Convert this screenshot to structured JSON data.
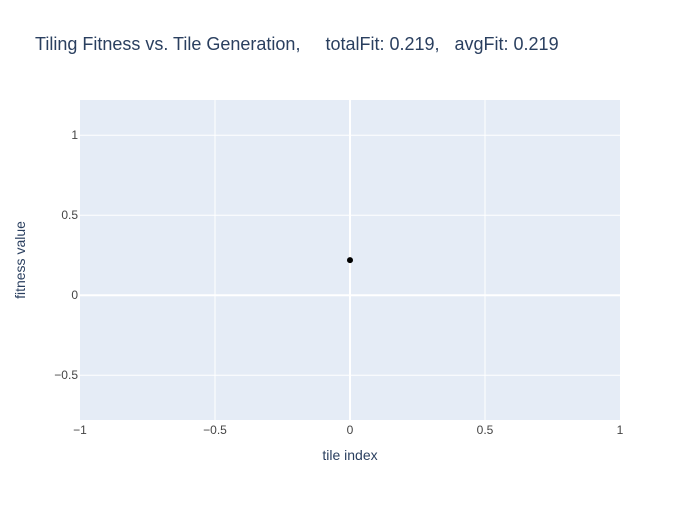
{
  "chart_data": {
    "type": "scatter",
    "title": "Tiling Fitness vs. Tile Generation,     totalFit: 0.219,   avgFit: 0.219",
    "xlabel": "tile index",
    "ylabel": "fitness value",
    "xlim": [
      -1,
      1
    ],
    "ylim": [
      -0.78,
      1.22
    ],
    "x_ticks": [
      -1,
      -0.5,
      0,
      0.5,
      1
    ],
    "x_tick_labels": [
      "−1",
      "−0.5",
      "0",
      "0.5",
      "1"
    ],
    "y_ticks": [
      -0.5,
      0,
      0.5,
      1
    ],
    "y_tick_labels": [
      "−0.5",
      "0",
      "0.5",
      "1"
    ],
    "grid": true,
    "series": [
      {
        "x": [
          0
        ],
        "y": [
          0.219
        ],
        "color": "#000000"
      }
    ],
    "colors": {
      "plot_background": "#e5ecf6",
      "grid": "#ffffff",
      "text": "#2a3f5f",
      "tick_text": "#444444"
    }
  }
}
